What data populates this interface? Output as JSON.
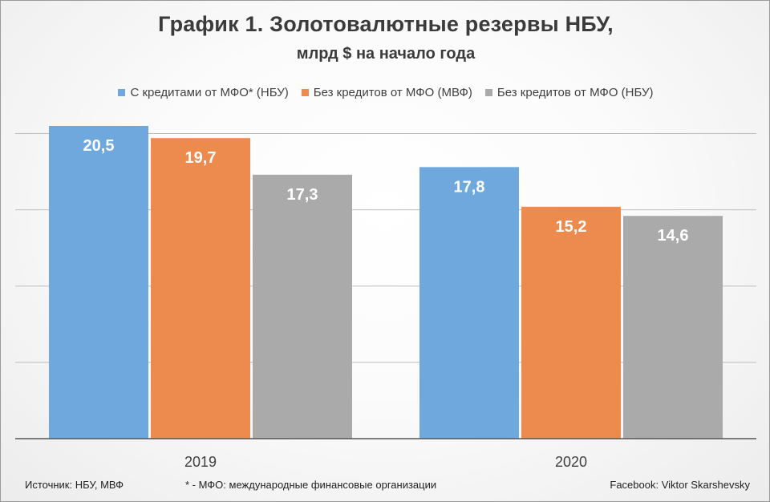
{
  "chart_data": {
    "type": "bar",
    "title": "График 1. Золотовалютные резервы НБУ,",
    "subtitle": "млрд $ на начало года",
    "categories": [
      "2019",
      "2020"
    ],
    "series": [
      {
        "name": "С кредитами от МФО* (НБУ)",
        "color": "#6fa8dc",
        "values": [
          20.5,
          17.8
        ],
        "labels": [
          "20,5",
          "17,8"
        ]
      },
      {
        "name": "Без кредитов от МФО (МВФ)",
        "color": "#ed8b4f",
        "values": [
          19.7,
          15.2
        ],
        "labels": [
          "19,7",
          "15,2"
        ]
      },
      {
        "name": "Без кредитов от МФО (НБУ)",
        "color": "#aaaaaa",
        "values": [
          17.3,
          14.6
        ],
        "labels": [
          "17,3",
          "14,6"
        ]
      }
    ],
    "ylim": [
      0,
      20.5
    ],
    "gridlines": [
      5,
      10,
      15,
      20
    ],
    "xlabel": "",
    "ylabel": "",
    "legend": "top-center"
  },
  "footer": {
    "source": "Источник: НБУ, МВФ",
    "note": "* - МФО: международные финансовые организации",
    "credit": "Facebook: Viktor Skarshevsky"
  }
}
